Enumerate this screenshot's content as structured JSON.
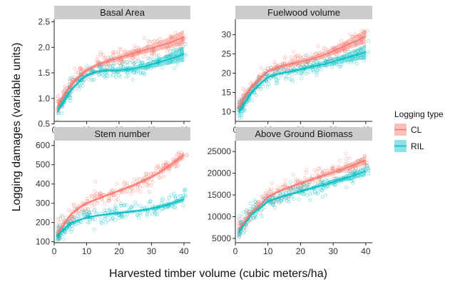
{
  "chart_data": {
    "type": "scatter",
    "xlabel": "Harvested timber volume (cubic meters/ha)",
    "ylabel": "Logging damages (variable units)",
    "legend": {
      "title": "Logging type",
      "placement": "right",
      "entries": [
        {
          "name": "CL",
          "color": "#F8766D"
        },
        {
          "name": "RIL",
          "color": "#00BFC4"
        }
      ]
    },
    "grid": false,
    "panels": [
      {
        "title": "Basal Area",
        "xlim": [
          0,
          42
        ],
        "xticks": [
          0,
          10,
          20,
          30,
          40
        ],
        "ylim": [
          0.55,
          2.55
        ],
        "yticks": [
          0.5,
          1.0,
          1.5,
          2.0,
          2.5
        ],
        "ytick_labels": [
          "0.5",
          "1.0",
          "1.5",
          "2.0",
          "2.5"
        ],
        "series": [
          {
            "name": "CL",
            "x": [
              1,
              3,
              5,
              8,
              10,
              13,
              16,
              20,
              24,
              28,
              32,
              36,
              40
            ],
            "y": [
              0.85,
              1.05,
              1.25,
              1.45,
              1.55,
              1.65,
              1.72,
              1.8,
              1.87,
              1.95,
              2.02,
              2.1,
              2.2
            ],
            "band": [
              0.08,
              0.06,
              0.05,
              0.04,
              0.04,
              0.04,
              0.04,
              0.05,
              0.06,
              0.07,
              0.09,
              0.11,
              0.14
            ]
          },
          {
            "name": "RIL",
            "x": [
              1,
              3,
              5,
              8,
              10,
              13,
              16,
              20,
              24,
              28,
              32,
              36,
              40
            ],
            "y": [
              0.75,
              0.95,
              1.15,
              1.35,
              1.45,
              1.52,
              1.55,
              1.55,
              1.58,
              1.63,
              1.7,
              1.78,
              1.87
            ],
            "band": [
              0.07,
              0.05,
              0.04,
              0.03,
              0.03,
              0.03,
              0.03,
              0.04,
              0.05,
              0.06,
              0.08,
              0.11,
              0.15
            ]
          }
        ]
      },
      {
        "title": "Fuelwood volume",
        "xlim": [
          0,
          42
        ],
        "xticks": [
          0,
          10,
          20,
          30,
          40
        ],
        "ylim": [
          7.5,
          34
        ],
        "yticks": [
          10,
          15,
          20,
          25,
          30
        ],
        "ytick_labels": [
          "10",
          "15",
          "20",
          "25",
          "30"
        ],
        "series": [
          {
            "name": "CL",
            "x": [
              1,
              3,
              5,
              8,
              10,
              13,
              16,
              20,
              24,
              28,
              32,
              36,
              40
            ],
            "y": [
              11,
              14,
              16.5,
              19,
              20.5,
              21.5,
              22.2,
              23,
              23.8,
              25,
              26.5,
              28,
              29.5
            ],
            "band": [
              1.0,
              0.8,
              0.6,
              0.5,
              0.5,
              0.5,
              0.5,
              0.6,
              0.7,
              0.9,
              1.1,
              1.4,
              1.8
            ]
          },
          {
            "name": "RIL",
            "x": [
              1,
              3,
              5,
              8,
              10,
              13,
              16,
              20,
              24,
              28,
              32,
              36,
              40
            ],
            "y": [
              10,
              12.5,
              15,
              17.5,
              19,
              19.8,
              20.3,
              21,
              21.8,
              22.5,
              23.5,
              24.5,
              25.5
            ],
            "band": [
              0.9,
              0.7,
              0.5,
              0.4,
              0.4,
              0.4,
              0.4,
              0.5,
              0.6,
              0.8,
              1.0,
              1.4,
              1.9
            ]
          }
        ]
      },
      {
        "title": "Stem number",
        "xlim": [
          0,
          42
        ],
        "xticks": [
          0,
          10,
          20,
          30,
          40
        ],
        "ylim": [
          95,
          625
        ],
        "yticks": [
          100,
          200,
          300,
          400,
          500,
          600
        ],
        "ytick_labels": [
          "100",
          "200",
          "300",
          "400",
          "500",
          "600"
        ],
        "series": [
          {
            "name": "CL",
            "x": [
              1,
              3,
              5,
              8,
              10,
              13,
              16,
              20,
              24,
              28,
              32,
              36,
              40
            ],
            "y": [
              140,
              190,
              240,
              280,
              300,
              320,
              340,
              365,
              390,
              420,
              455,
              500,
              550
            ],
            "band": [
              10,
              8,
              7,
              6,
              6,
              6,
              6,
              7,
              8,
              9,
              11,
              14,
              17
            ]
          },
          {
            "name": "RIL",
            "x": [
              1,
              3,
              5,
              8,
              10,
              13,
              16,
              20,
              24,
              28,
              32,
              36,
              40
            ],
            "y": [
              130,
              165,
              195,
              215,
              225,
              235,
              242,
              250,
              257,
              265,
              280,
              298,
              320
            ],
            "band": [
              9,
              7,
              6,
              5,
              5,
              5,
              5,
              6,
              7,
              8,
              9,
              11,
              14
            ]
          }
        ]
      },
      {
        "title": "Above Ground Biomass",
        "xlim": [
          0,
          42
        ],
        "xticks": [
          0,
          10,
          20,
          30,
          40
        ],
        "ylim": [
          4000,
          27500
        ],
        "yticks": [
          5000,
          10000,
          15000,
          20000,
          25000
        ],
        "ytick_labels": [
          "5000",
          "10000",
          "15000",
          "20000",
          "25000"
        ],
        "series": [
          {
            "name": "CL",
            "x": [
              1,
              3,
              5,
              8,
              10,
              13,
              16,
              20,
              24,
              28,
              32,
              36,
              40
            ],
            "y": [
              7000,
              9000,
              11000,
              13000,
              14500,
              15700,
              16600,
              17700,
              18700,
              19700,
              20700,
              21800,
              23000
            ],
            "band": [
              500,
              400,
              350,
              300,
              300,
              300,
              300,
              350,
              400,
              500,
              650,
              800,
              1000
            ]
          },
          {
            "name": "RIL",
            "x": [
              1,
              3,
              5,
              8,
              10,
              13,
              16,
              20,
              24,
              28,
              32,
              36,
              40
            ],
            "y": [
              6500,
              8500,
              10500,
              12300,
              13500,
              14300,
              15000,
              15800,
              16700,
              17500,
              18500,
              19400,
              20500
            ],
            "band": [
              450,
              380,
              330,
              280,
              280,
              280,
              280,
              320,
              380,
              480,
              620,
              800,
              1050
            ]
          }
        ]
      }
    ]
  }
}
